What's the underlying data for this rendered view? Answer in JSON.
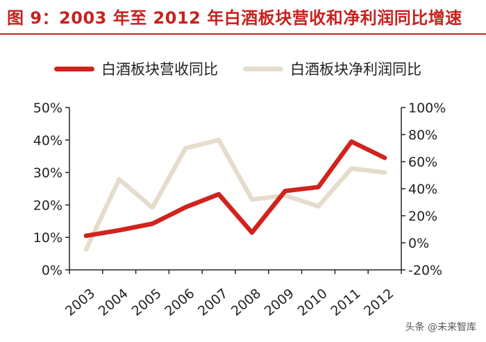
{
  "title": "图 9：2003 年至 2012 年白酒板块营收和净利润同比增速",
  "watermark": "头条 @未来智库",
  "colors": {
    "revenue": "#d1231e",
    "profit": "#e6dccc",
    "axis": "#222222",
    "title": "#c8211e"
  },
  "chart_data": {
    "type": "line",
    "title": "",
    "xlabel": "",
    "ylabel": "",
    "categories": [
      "2003",
      "2004",
      "2005",
      "2006",
      "2007",
      "2008",
      "2009",
      "2010",
      "2011",
      "2012"
    ],
    "y_left": {
      "min": 0,
      "max": 50,
      "ticks": [
        0,
        10,
        20,
        30,
        40,
        50
      ],
      "tick_labels": [
        "0%",
        "10%",
        "20%",
        "30%",
        "40%",
        "50%"
      ]
    },
    "y_right": {
      "min": -20,
      "max": 100,
      "ticks": [
        -20,
        0,
        20,
        40,
        60,
        80,
        100
      ],
      "tick_labels": [
        "-20%",
        "0%",
        "20%",
        "40%",
        "60%",
        "80%",
        "100%"
      ]
    },
    "series": [
      {
        "name": "白酒板块营收同比",
        "axis": "left",
        "values": [
          10.5,
          12.2,
          14.2,
          19.3,
          23.3,
          11.5,
          24.3,
          25.5,
          39.5,
          34.5
        ]
      },
      {
        "name": "白酒板块净利润同比",
        "axis": "right",
        "values": [
          -5,
          47,
          26,
          70,
          76,
          32,
          35,
          27,
          55,
          52
        ]
      }
    ],
    "legend": "top",
    "grid": false
  }
}
